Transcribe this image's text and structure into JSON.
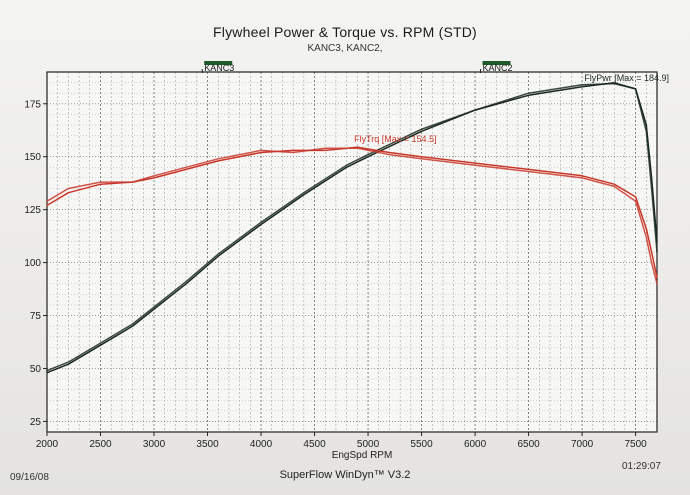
{
  "chart_data": {
    "type": "line",
    "title": "Flywheel Power & Torque vs. RPM (STD)",
    "subtitle": "KANC3, KANC2,",
    "xlabel": "EngSpd RPM",
    "ylabel": "",
    "xlim": [
      2000,
      7700
    ],
    "ylim": [
      20,
      190
    ],
    "x_ticks": [
      2000,
      2500,
      3000,
      3500,
      4000,
      4500,
      5000,
      5500,
      6000,
      6500,
      7000,
      7500
    ],
    "y_ticks": [
      25,
      50,
      75,
      100,
      125,
      150,
      175
    ],
    "grid": true,
    "markers": [
      {
        "label": "KANC3",
        "x": 3600
      },
      {
        "label": "KANC2",
        "x": 6200
      }
    ],
    "series": [
      {
        "name": "FlyPwr",
        "annotation": "FlyPwr [Max = 184.9]",
        "color": "#1b2a1f",
        "runs": [
          {
            "points": [
              [
                2000,
                48
              ],
              [
                2200,
                52
              ],
              [
                2500,
                61
              ],
              [
                2800,
                70
              ],
              [
                3000,
                78
              ],
              [
                3300,
                90
              ],
              [
                3600,
                103
              ],
              [
                4000,
                118
              ],
              [
                4400,
                132
              ],
              [
                4800,
                145
              ],
              [
                5000,
                150
              ],
              [
                5500,
                162
              ],
              [
                6000,
                172
              ],
              [
                6500,
                179
              ],
              [
                7000,
                183
              ],
              [
                7300,
                184.9
              ],
              [
                7500,
                182
              ],
              [
                7600,
                165
              ],
              [
                7650,
                140
              ],
              [
                7700,
                110
              ]
            ]
          },
          {
            "points": [
              [
                2000,
                49
              ],
              [
                2200,
                53
              ],
              [
                2500,
                62
              ],
              [
                2800,
                71
              ],
              [
                3000,
                79
              ],
              [
                3300,
                91
              ],
              [
                3600,
                104
              ],
              [
                4000,
                119
              ],
              [
                4400,
                133
              ],
              [
                4800,
                146
              ],
              [
                5000,
                151
              ],
              [
                5500,
                163
              ],
              [
                6000,
                172
              ],
              [
                6500,
                180
              ],
              [
                7000,
                184
              ],
              [
                7300,
                184.5
              ],
              [
                7500,
                182
              ],
              [
                7600,
                162
              ],
              [
                7650,
                135
              ],
              [
                7700,
                105
              ]
            ]
          }
        ]
      },
      {
        "name": "FlyTrq",
        "annotation": "FlyTrq [Max = 154.5]",
        "color": "#c9372b",
        "runs": [
          {
            "points": [
              [
                2000,
                127
              ],
              [
                2200,
                133
              ],
              [
                2500,
                137
              ],
              [
                2800,
                138
              ],
              [
                3000,
                140
              ],
              [
                3300,
                144
              ],
              [
                3600,
                148
              ],
              [
                4000,
                152
              ],
              [
                4300,
                153
              ],
              [
                4600,
                153
              ],
              [
                4900,
                154.5
              ],
              [
                5200,
                152
              ],
              [
                5500,
                150
              ],
              [
                6000,
                147
              ],
              [
                6500,
                144
              ],
              [
                7000,
                141
              ],
              [
                7300,
                137
              ],
              [
                7500,
                131
              ],
              [
                7600,
                116
              ],
              [
                7650,
                105
              ],
              [
                7700,
                93
              ]
            ]
          },
          {
            "points": [
              [
                2000,
                129
              ],
              [
                2200,
                135
              ],
              [
                2500,
                138
              ],
              [
                2800,
                138
              ],
              [
                3000,
                141
              ],
              [
                3300,
                145
              ],
              [
                3600,
                149
              ],
              [
                4000,
                153
              ],
              [
                4300,
                152
              ],
              [
                4600,
                154
              ],
              [
                4900,
                154
              ],
              [
                5200,
                151
              ],
              [
                5500,
                149
              ],
              [
                6000,
                146
              ],
              [
                6500,
                143
              ],
              [
                7000,
                140
              ],
              [
                7300,
                136
              ],
              [
                7500,
                129
              ],
              [
                7600,
                112
              ],
              [
                7650,
                100
              ],
              [
                7700,
                90
              ]
            ]
          }
        ]
      }
    ]
  },
  "footer": {
    "date": "09/16/08",
    "app": "SuperFlow WinDyn™ V3.2",
    "time": "01:29:07"
  }
}
